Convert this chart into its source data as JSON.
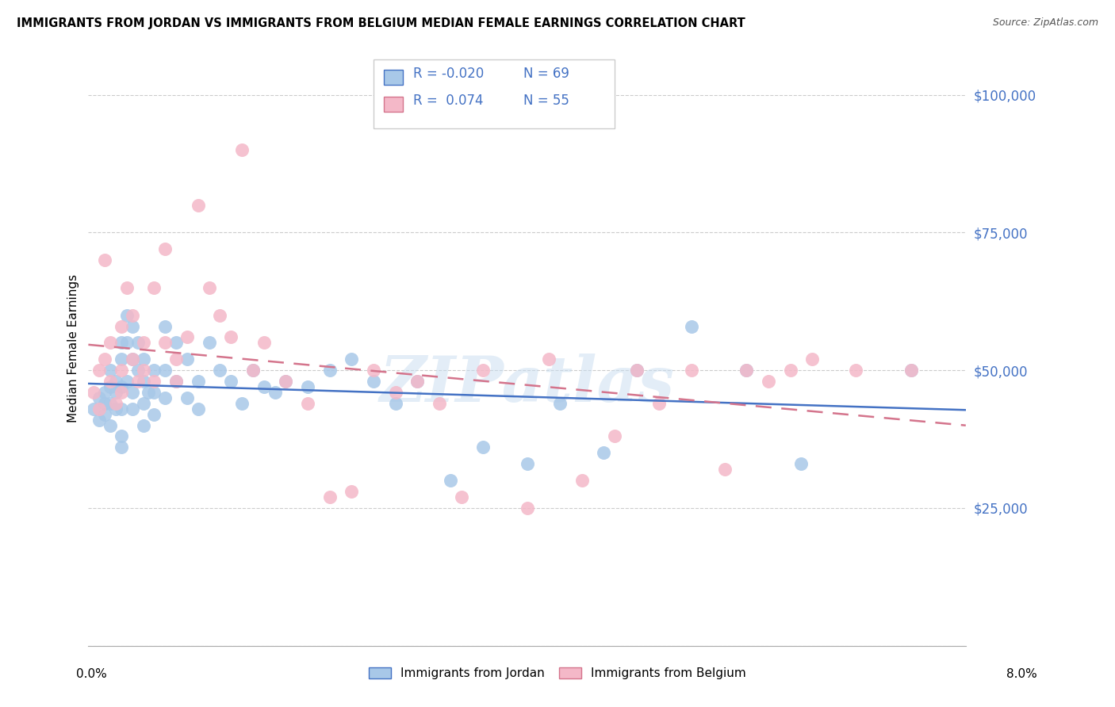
{
  "title": "IMMIGRANTS FROM JORDAN VS IMMIGRANTS FROM BELGIUM MEDIAN FEMALE EARNINGS CORRELATION CHART",
  "source": "Source: ZipAtlas.com",
  "ylabel": "Median Female Earnings",
  "legend_label1": "Immigrants from Jordan",
  "legend_label2": "Immigrants from Belgium",
  "r1": "-0.020",
  "n1": "69",
  "r2": "0.074",
  "n2": "55",
  "color_jordan": "#a8c8e8",
  "color_belgium": "#f4b8c8",
  "color_jordan_line": "#4472c4",
  "color_belgium_line": "#d4748c",
  "watermark": "ZIPatlas",
  "yticks": [
    0,
    25000,
    50000,
    75000,
    100000
  ],
  "ytick_labels": [
    "",
    "$25,000",
    "$50,000",
    "$75,000",
    "$100,000"
  ],
  "xmin": 0.0,
  "xmax": 0.08,
  "ymin": 0,
  "ymax": 108000,
  "jordan_x": [
    0.0005,
    0.001,
    0.001,
    0.0015,
    0.0015,
    0.0015,
    0.002,
    0.002,
    0.002,
    0.002,
    0.0025,
    0.0025,
    0.0025,
    0.003,
    0.003,
    0.003,
    0.003,
    0.003,
    0.003,
    0.0035,
    0.0035,
    0.0035,
    0.004,
    0.004,
    0.004,
    0.004,
    0.0045,
    0.0045,
    0.005,
    0.005,
    0.005,
    0.005,
    0.0055,
    0.006,
    0.006,
    0.006,
    0.007,
    0.007,
    0.007,
    0.008,
    0.008,
    0.009,
    0.009,
    0.01,
    0.01,
    0.011,
    0.012,
    0.013,
    0.014,
    0.015,
    0.016,
    0.017,
    0.018,
    0.02,
    0.022,
    0.024,
    0.026,
    0.028,
    0.03,
    0.033,
    0.036,
    0.04,
    0.043,
    0.047,
    0.05,
    0.055,
    0.06,
    0.065,
    0.075
  ],
  "jordan_y": [
    43000,
    45000,
    41000,
    46000,
    44000,
    42000,
    50000,
    47000,
    44000,
    40000,
    48000,
    46000,
    43000,
    55000,
    52000,
    47000,
    43000,
    38000,
    36000,
    60000,
    55000,
    48000,
    58000,
    52000,
    46000,
    43000,
    55000,
    50000,
    52000,
    48000,
    44000,
    40000,
    46000,
    50000,
    46000,
    42000,
    58000,
    50000,
    45000,
    55000,
    48000,
    52000,
    45000,
    48000,
    43000,
    55000,
    50000,
    48000,
    44000,
    50000,
    47000,
    46000,
    48000,
    47000,
    50000,
    52000,
    48000,
    44000,
    48000,
    30000,
    36000,
    33000,
    44000,
    35000,
    50000,
    58000,
    50000,
    33000,
    50000
  ],
  "belgium_x": [
    0.0005,
    0.001,
    0.001,
    0.0015,
    0.0015,
    0.002,
    0.002,
    0.0025,
    0.003,
    0.003,
    0.003,
    0.0035,
    0.004,
    0.004,
    0.0045,
    0.005,
    0.005,
    0.006,
    0.006,
    0.007,
    0.007,
    0.008,
    0.008,
    0.009,
    0.01,
    0.011,
    0.012,
    0.013,
    0.014,
    0.015,
    0.016,
    0.018,
    0.02,
    0.022,
    0.024,
    0.026,
    0.028,
    0.03,
    0.032,
    0.034,
    0.036,
    0.04,
    0.042,
    0.045,
    0.048,
    0.05,
    0.052,
    0.055,
    0.058,
    0.06,
    0.062,
    0.064,
    0.066,
    0.07,
    0.075
  ],
  "belgium_y": [
    46000,
    43000,
    50000,
    70000,
    52000,
    48000,
    55000,
    44000,
    58000,
    50000,
    46000,
    65000,
    60000,
    52000,
    48000,
    55000,
    50000,
    65000,
    48000,
    72000,
    55000,
    52000,
    48000,
    56000,
    80000,
    65000,
    60000,
    56000,
    90000,
    50000,
    55000,
    48000,
    44000,
    27000,
    28000,
    50000,
    46000,
    48000,
    44000,
    27000,
    50000,
    25000,
    52000,
    30000,
    38000,
    50000,
    44000,
    50000,
    32000,
    50000,
    48000,
    50000,
    52000,
    50000,
    50000
  ]
}
